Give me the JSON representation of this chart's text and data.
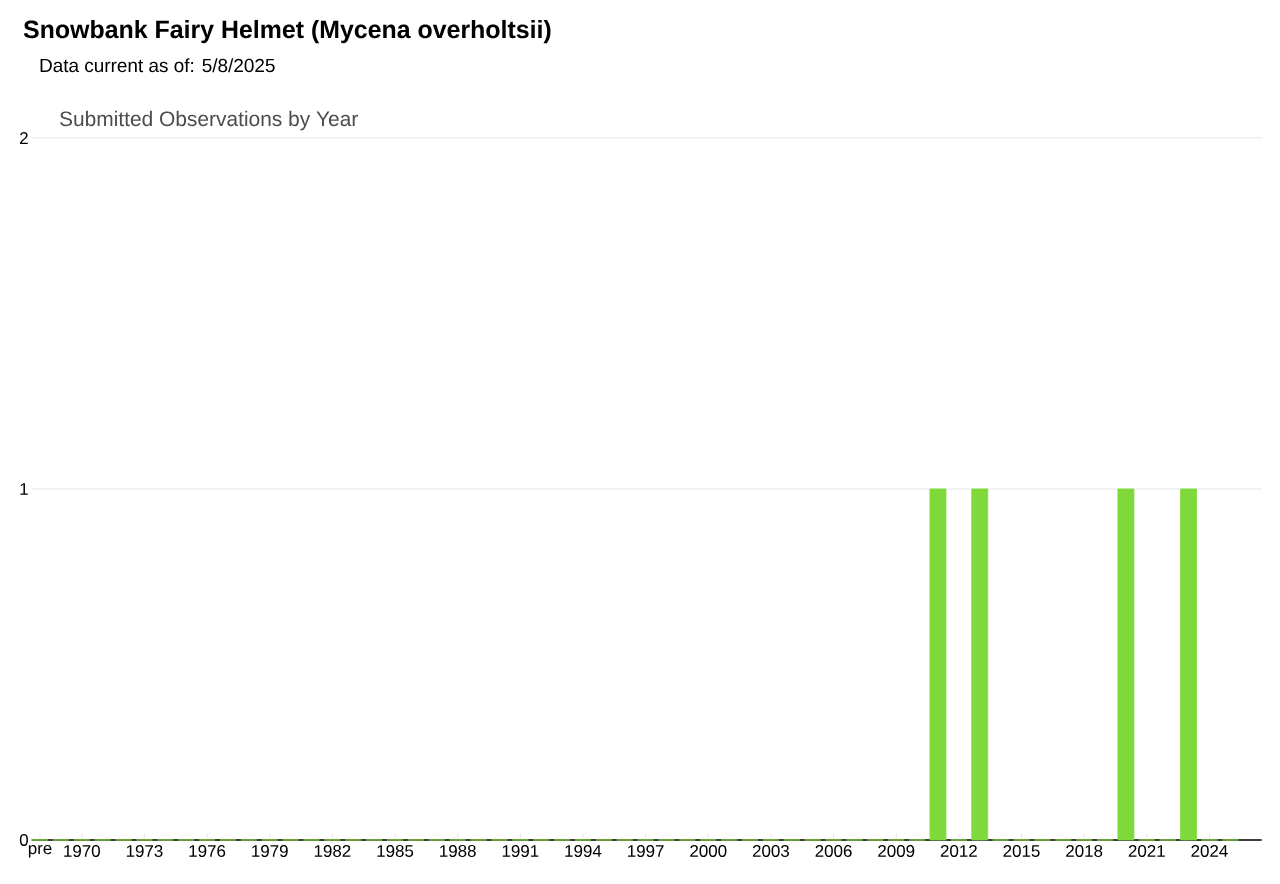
{
  "chart_data": {
    "type": "bar",
    "title": "Snowbank Fairy Helmet   (Mycena overholtsii)",
    "subtitle": "Data current as of: 5/8/2025",
    "annotations": [
      "Submitted Observations by Year"
    ],
    "categories": [
      "pre",
      null,
      "1970",
      null,
      null,
      "1973",
      null,
      null,
      "1976",
      null,
      null,
      "1979",
      null,
      null,
      "1982",
      null,
      null,
      "1985",
      null,
      null,
      "1988",
      null,
      null,
      "1991",
      null,
      null,
      "1994",
      null,
      null,
      "1997",
      null,
      null,
      "2000",
      null,
      null,
      "2003",
      null,
      null,
      "2006",
      null,
      null,
      "2009",
      null,
      null,
      "2012",
      null,
      null,
      "2015",
      null,
      null,
      "2018",
      null,
      null,
      "2021",
      null,
      null,
      "2024",
      null
    ],
    "values": [
      0,
      0,
      0,
      0,
      0,
      0,
      0,
      0,
      0,
      0,
      0,
      0,
      0,
      0,
      0,
      0,
      0,
      0,
      0,
      0,
      0,
      0,
      0,
      0,
      0,
      0,
      0,
      0,
      0,
      0,
      0,
      0,
      0,
      0,
      0,
      0,
      0,
      0,
      0,
      0,
      0,
      0,
      0,
      1,
      0,
      1,
      0,
      0,
      0,
      0,
      0,
      0,
      1,
      0,
      0,
      1,
      0,
      0
    ],
    "color": "#7fd93a",
    "ylim": [
      0,
      2
    ],
    "yticks": [
      0,
      1,
      2
    ],
    "grid": "y"
  }
}
